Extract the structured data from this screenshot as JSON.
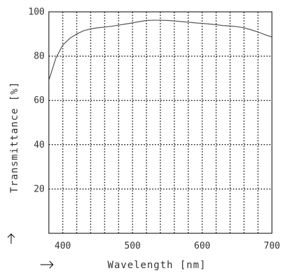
{
  "chart_data": {
    "type": "line",
    "title": "",
    "xlabel": "Wavelength [nm]",
    "ylabel": "Transmittance [%]",
    "xlim": [
      380,
      700
    ],
    "ylim": [
      0,
      100
    ],
    "xticks": [
      400,
      500,
      600,
      700
    ],
    "yticks": [
      20,
      40,
      60,
      80,
      100
    ],
    "grid": true,
    "series": [
      {
        "color": "#555555",
        "x": [
          380,
          390,
          400,
          410,
          420,
          430,
          440,
          450,
          460,
          470,
          480,
          490,
          500,
          510,
          520,
          530,
          540,
          550,
          560,
          570,
          580,
          590,
          600,
          610,
          620,
          630,
          640,
          650,
          660,
          670,
          680,
          690,
          700
        ],
        "y": [
          69,
          79,
          85,
          88,
          90,
          91.5,
          92.3,
          92.8,
          93.1,
          93.5,
          94,
          94.5,
          95,
          95.6,
          96.1,
          96.2,
          96.2,
          96.1,
          95.9,
          95.6,
          95.3,
          95,
          94.8,
          94.5,
          94.2,
          93.8,
          93.6,
          93.3,
          92.8,
          91.9,
          90.9,
          89.7,
          88.6
        ]
      }
    ]
  },
  "decorations": {
    "y_arrow_icon": "arrow-up-icon",
    "x_arrow_icon": "arrow-right-icon"
  }
}
